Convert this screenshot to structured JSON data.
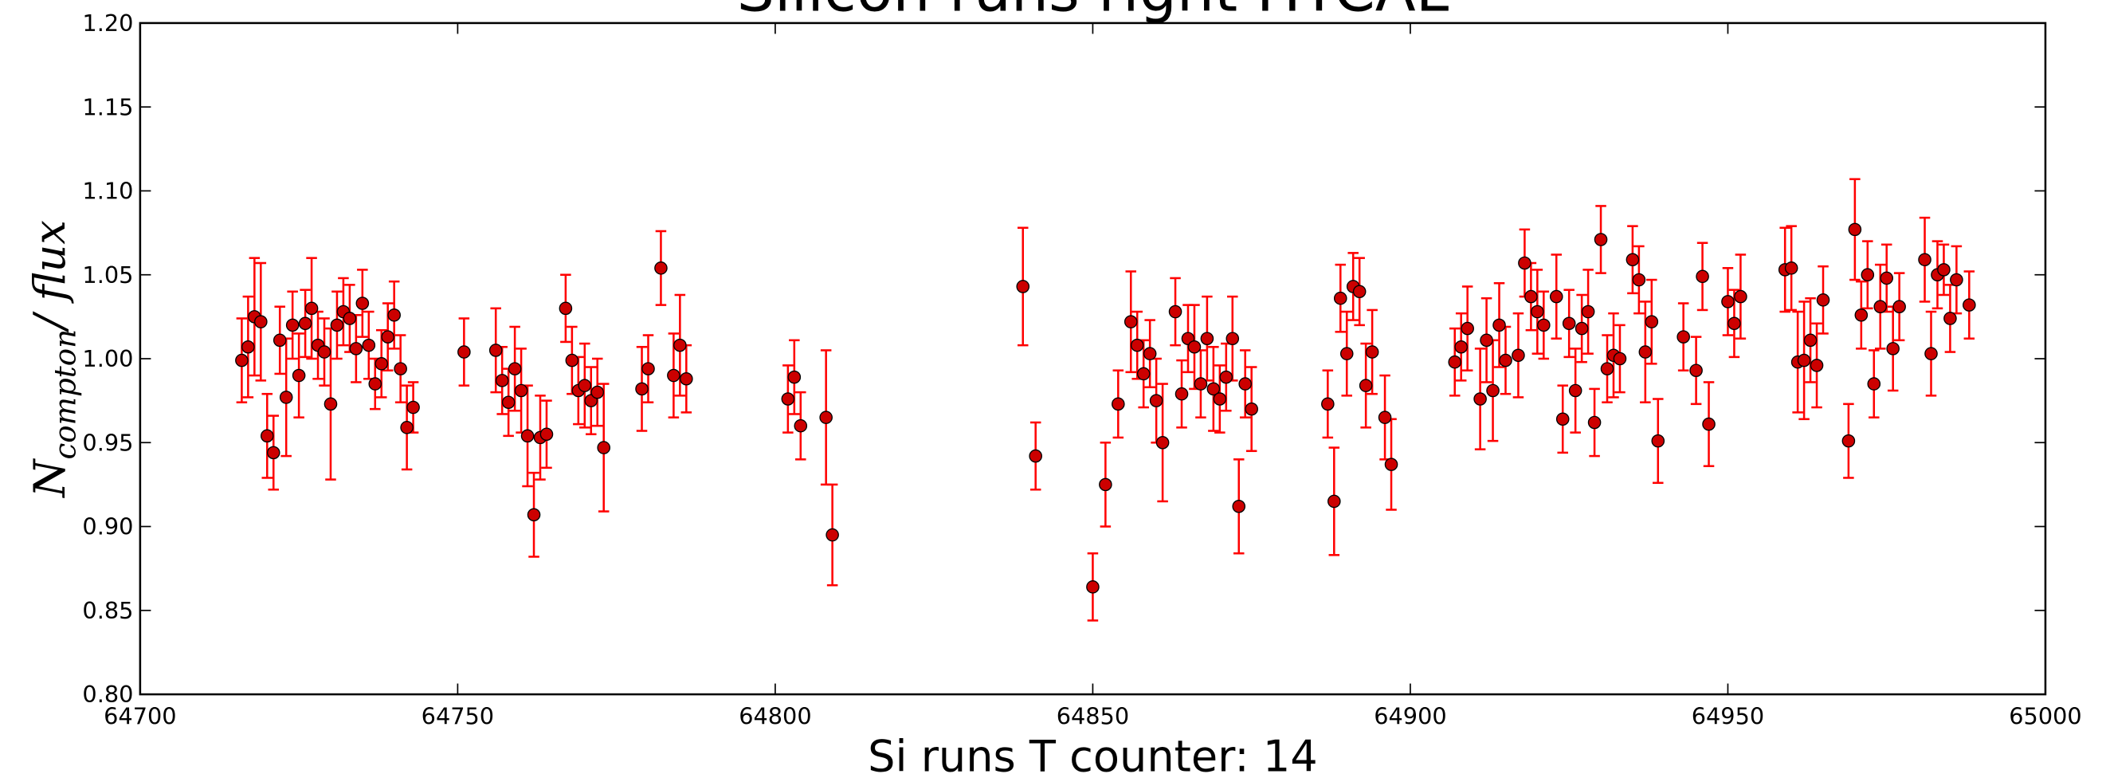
{
  "chart_data": {
    "type": "scatter",
    "title": "Silicon runs right HTCAL",
    "xlabel": "Si runs T counter: 14",
    "ylabel": {
      "main": "N",
      "sub": "compton",
      "rest": "/ flux"
    },
    "color": "#ff0000",
    "marker_color": "#cc0000",
    "xlim": [
      64700,
      65000
    ],
    "xticks": [
      64700,
      64750,
      64800,
      64850,
      64900,
      64950,
      65000
    ],
    "ylim": [
      0.8,
      1.2
    ],
    "yticks": [
      {
        "value": 0.8,
        "label": "0.80"
      },
      {
        "value": 0.85,
        "label": "0.85"
      },
      {
        "value": 0.9,
        "label": "0.90"
      },
      {
        "value": 0.95,
        "label": "0.95"
      },
      {
        "value": 1.0,
        "label": "1.00"
      },
      {
        "value": 1.05,
        "label": "1.05"
      },
      {
        "value": 1.1,
        "label": "1.10"
      },
      {
        "value": 1.15,
        "label": "1.15"
      },
      {
        "value": 1.2,
        "label": "1.20"
      }
    ],
    "grid": false,
    "x": [
      64716,
      64717,
      64718,
      64719,
      64720,
      64721,
      64722,
      64723,
      64724,
      64725,
      64726,
      64727,
      64728,
      64729,
      64730,
      64731,
      64732,
      64733,
      64734,
      64735,
      64736,
      64737,
      64738,
      64739,
      64740,
      64741,
      64742,
      64743,
      64751,
      64756,
      64757,
      64758,
      64759,
      64760,
      64761,
      64762,
      64763,
      64764,
      64767,
      64768,
      64769,
      64770,
      64771,
      64772,
      64773,
      64779,
      64780,
      64782,
      64784,
      64785,
      64786,
      64802,
      64803,
      64804,
      64808,
      64809,
      64839,
      64841,
      64850,
      64852,
      64854,
      64856,
      64857,
      64858,
      64859,
      64860,
      64861,
      64863,
      64864,
      64865,
      64866,
      64867,
      64868,
      64869,
      64870,
      64871,
      64872,
      64873,
      64874,
      64875,
      64887,
      64888,
      64889,
      64890,
      64891,
      64892,
      64893,
      64894,
      64896,
      64897,
      64907,
      64908,
      64909,
      64911,
      64912,
      64913,
      64914,
      64915,
      64917,
      64918,
      64919,
      64920,
      64921,
      64923,
      64924,
      64925,
      64926,
      64927,
      64928,
      64929,
      64930,
      64931,
      64932,
      64933,
      64935,
      64936,
      64937,
      64938,
      64939,
      64943,
      64945,
      64946,
      64947,
      64950,
      64951,
      64952,
      64959,
      64960,
      64961,
      64962,
      64963,
      64964,
      64965,
      64969,
      64970,
      64971,
      64972,
      64973,
      64974,
      64975,
      64976,
      64977,
      64981,
      64982,
      64983,
      64984,
      64985,
      64986,
      64988
    ],
    "values": [
      0.999,
      1.007,
      1.025,
      1.022,
      0.954,
      0.944,
      1.011,
      0.977,
      1.02,
      0.99,
      1.021,
      1.03,
      1.008,
      1.004,
      0.973,
      1.02,
      1.028,
      1.024,
      1.006,
      1.033,
      1.008,
      0.985,
      0.997,
      1.013,
      1.026,
      0.994,
      0.959,
      0.971,
      1.004,
      1.005,
      0.987,
      0.974,
      0.994,
      0.981,
      0.954,
      0.907,
      0.953,
      0.955,
      1.03,
      0.999,
      0.981,
      0.984,
      0.975,
      0.98,
      0.947,
      0.982,
      0.994,
      1.054,
      0.99,
      1.008,
      0.988,
      0.976,
      0.989,
      0.96,
      0.965,
      0.895,
      1.043,
      0.942,
      0.864,
      0.925,
      0.973,
      1.022,
      1.008,
      0.991,
      1.003,
      0.975,
      0.95,
      1.028,
      0.979,
      1.012,
      1.007,
      0.985,
      1.012,
      0.982,
      0.976,
      0.989,
      1.012,
      0.912,
      0.985,
      0.97,
      0.973,
      0.915,
      1.036,
      1.003,
      1.043,
      1.04,
      0.984,
      1.004,
      0.965,
      0.937,
      0.998,
      1.007,
      1.018,
      0.976,
      1.011,
      0.981,
      1.02,
      0.999,
      1.002,
      1.057,
      1.037,
      1.028,
      1.02,
      1.037,
      0.964,
      1.021,
      0.981,
      1.018,
      1.028,
      0.962,
      1.071,
      0.994,
      1.002,
      1.0,
      1.059,
      1.047,
      1.004,
      1.022,
      0.951,
      1.013,
      0.993,
      1.049,
      0.961,
      1.034,
      1.021,
      1.037,
      1.053,
      1.054,
      0.998,
      0.999,
      1.011,
      0.996,
      1.035,
      0.951,
      1.077,
      1.026,
      1.05,
      0.985,
      1.031,
      1.048,
      1.006,
      1.031,
      1.059,
      1.003,
      1.05,
      1.053,
      1.024,
      1.047,
      1.032
    ],
    "errors": [
      0.025,
      0.03,
      0.035,
      0.035,
      0.025,
      0.022,
      0.02,
      0.035,
      0.02,
      0.025,
      0.02,
      0.03,
      0.02,
      0.02,
      0.045,
      0.02,
      0.02,
      0.02,
      0.02,
      0.02,
      0.02,
      0.015,
      0.02,
      0.02,
      0.02,
      0.02,
      0.025,
      0.015,
      0.02,
      0.025,
      0.02,
      0.02,
      0.025,
      0.025,
      0.03,
      0.025,
      0.025,
      0.02,
      0.02,
      0.02,
      0.02,
      0.025,
      0.02,
      0.02,
      0.038,
      0.025,
      0.02,
      0.022,
      0.025,
      0.03,
      0.02,
      0.02,
      0.022,
      0.02,
      0.04,
      0.03,
      0.035,
      0.02,
      0.02,
      0.025,
      0.02,
      0.03,
      0.02,
      0.02,
      0.02,
      0.025,
      0.035,
      0.02,
      0.02,
      0.02,
      0.025,
      0.02,
      0.025,
      0.025,
      0.02,
      0.02,
      0.025,
      0.028,
      0.02,
      0.025,
      0.02,
      0.032,
      0.02,
      0.025,
      0.02,
      0.02,
      0.025,
      0.025,
      0.025,
      0.027,
      0.02,
      0.02,
      0.025,
      0.03,
      0.025,
      0.03,
      0.025,
      0.02,
      0.025,
      0.02,
      0.02,
      0.025,
      0.02,
      0.025,
      0.02,
      0.02,
      0.025,
      0.02,
      0.025,
      0.02,
      0.02,
      0.02,
      0.025,
      0.02,
      0.02,
      0.02,
      0.03,
      0.025,
      0.025,
      0.02,
      0.02,
      0.02,
      0.025,
      0.02,
      0.02,
      0.025,
      0.025,
      0.025,
      0.03,
      0.035,
      0.025,
      0.025,
      0.02,
      0.022,
      0.03,
      0.02,
      0.02,
      0.02,
      0.025,
      0.02,
      0.025,
      0.02,
      0.025,
      0.025,
      0.02,
      0.015,
      0.02,
      0.02,
      0.02
    ]
  }
}
